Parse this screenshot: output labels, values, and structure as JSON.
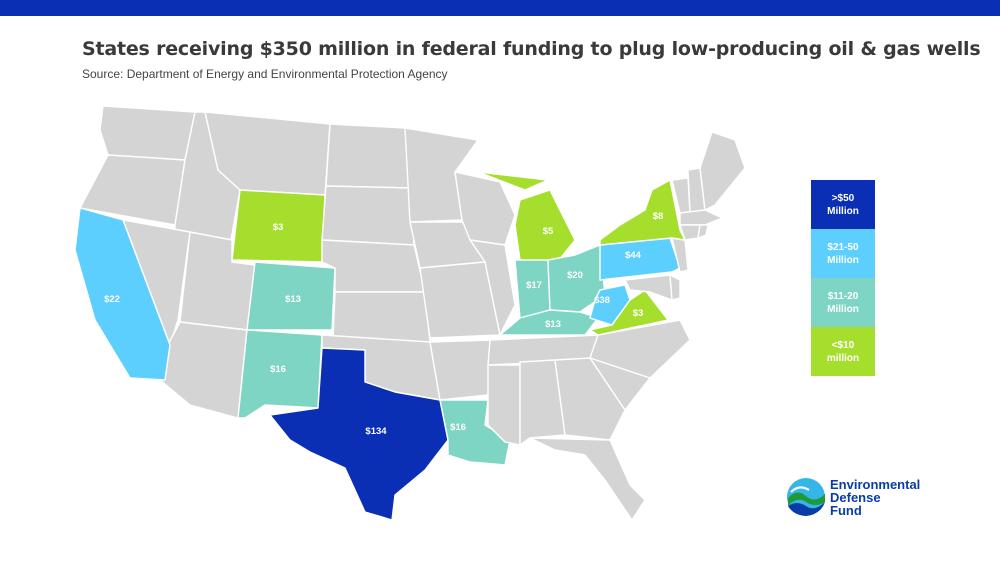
{
  "header": {
    "title": "States receiving $350 million in federal funding to plug low-producing oil & gas wells",
    "subtitle": "Source: Department of Energy and Environmental Protection Agency"
  },
  "colors": {
    "tier_50_plus": "#0a2fb5",
    "tier_21_50": "#5ccfff",
    "tier_11_20": "#7ed5c3",
    "tier_under_10": "#a6de2e",
    "no_funding": "#d4d4d4",
    "banner": "#0a2fb5"
  },
  "legend": [
    {
      "label": ">$50\nMillion",
      "color": "#0a2fb5"
    },
    {
      "label": "$21-50\nMillion",
      "color": "#5ccfff"
    },
    {
      "label": "$11-20\nMillion",
      "color": "#7ed5c3"
    },
    {
      "label": "<$10\nmillion",
      "color": "#a6de2e"
    }
  ],
  "states": {
    "texas": {
      "label": "$134",
      "tier": "tier_50_plus"
    },
    "pennsylvania": {
      "label": "$44",
      "tier": "tier_21_50"
    },
    "west_virginia": {
      "label": "$38",
      "tier": "tier_21_50"
    },
    "california": {
      "label": "$22",
      "tier": "tier_21_50"
    },
    "ohio": {
      "label": "$20",
      "tier": "tier_11_20"
    },
    "indiana": {
      "label": "$17",
      "tier": "tier_11_20"
    },
    "new_mexico": {
      "label": "$16",
      "tier": "tier_11_20"
    },
    "louisiana": {
      "label": "$16",
      "tier": "tier_11_20"
    },
    "colorado": {
      "label": "$13",
      "tier": "tier_11_20"
    },
    "kentucky": {
      "label": "$13",
      "tier": "tier_11_20"
    },
    "new_york": {
      "label": "$8",
      "tier": "tier_under_10"
    },
    "michigan": {
      "label": "$5",
      "tier": "tier_under_10"
    },
    "wyoming": {
      "label": "$3",
      "tier": "tier_under_10"
    },
    "virginia": {
      "label": "$3",
      "tier": "tier_under_10"
    }
  },
  "logo": {
    "text": "Environmental\nDefense\nFund",
    "icon": "edf-wave-logo-icon"
  }
}
